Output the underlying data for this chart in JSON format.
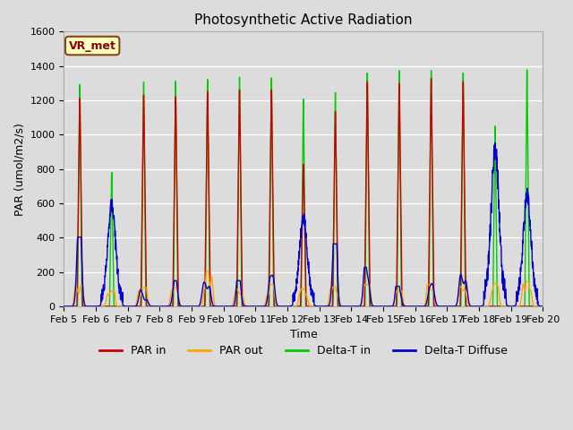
{
  "title": "Photosynthetic Active Radiation",
  "ylabel": "PAR (umol/m2/s)",
  "xlabel": "Time",
  "annotation": "VR_met",
  "ylim": [
    0,
    1600
  ],
  "xtick_labels": [
    "Feb 5",
    "Feb 6",
    "Feb 7",
    "Feb 8",
    "Feb 9",
    "Feb 10",
    "Feb 11",
    "Feb 12",
    "Feb 13",
    "Feb 14",
    "Feb 15",
    "Feb 16",
    "Feb 17",
    "Feb 18",
    "Feb 19",
    "Feb 20"
  ],
  "colors": {
    "par_in": "#cc0000",
    "par_out": "#ffa500",
    "delta_t_in": "#00cc00",
    "delta_t_diffuse": "#0000cc"
  },
  "legend_labels": [
    "PAR in",
    "PAR out",
    "Delta-T in",
    "Delta-T Diffuse"
  ],
  "axes_facecolor": "#dcdcdc",
  "fig_facecolor": "#dcdcdc",
  "grid_color": "#ffffff",
  "par_in_peaks": [
    1260,
    0,
    1280,
    1270,
    1300,
    1310,
    1310,
    860,
    1180,
    1360,
    1350,
    1380,
    1360,
    0,
    0
  ],
  "par_out_peaks": [
    100,
    75,
    90,
    90,
    170,
    100,
    105,
    85,
    95,
    105,
    75,
    105,
    95,
    110,
    120
  ],
  "delta_t_in_peaks": [
    1360,
    820,
    1375,
    1380,
    1390,
    1405,
    1400,
    1270,
    1310,
    1430,
    1445,
    1445,
    1430,
    1105,
    1450
  ],
  "delta_t_diff_peaks": [
    310,
    550,
    90,
    115,
    120,
    115,
    145,
    480,
    280,
    175,
    90,
    115,
    200,
    855,
    600
  ]
}
